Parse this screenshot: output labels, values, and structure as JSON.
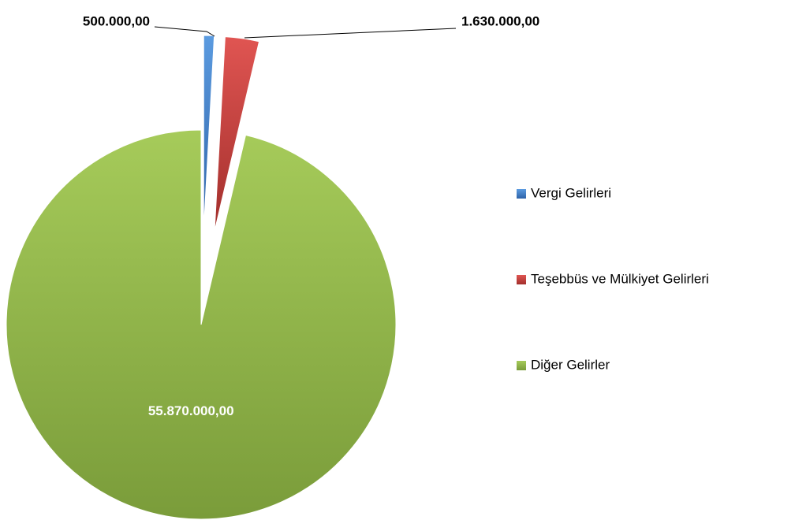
{
  "chart_data": {
    "type": "pie",
    "categories": [
      "Vergi Gelirleri",
      "Teşebbüs ve Mülkiyet Gelirleri",
      "Diğer Gelirler"
    ],
    "values": [
      500000,
      1630000,
      55870000
    ],
    "value_labels": [
      "500.000,00",
      "1.630.000,00",
      "55.870.000,00"
    ],
    "colors": [
      "#3f7fcc",
      "#c9413e",
      "#98bd4e"
    ],
    "legend": "right"
  }
}
